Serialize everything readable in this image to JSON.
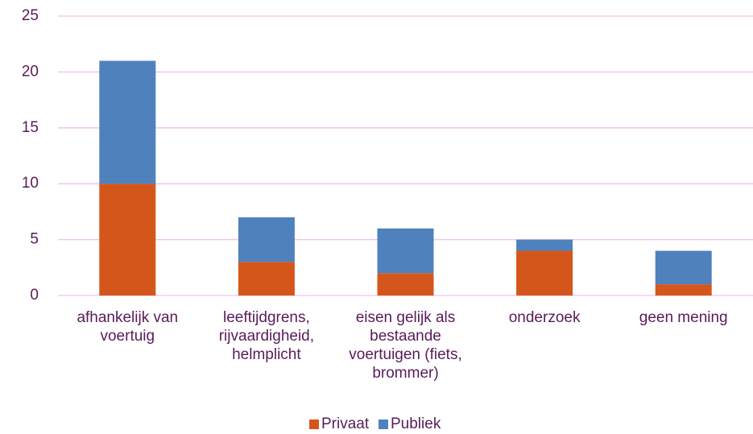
{
  "chart_data": {
    "type": "bar",
    "stacked": true,
    "categories": [
      "afhankelijk van voertuig",
      "leeftijdgrens, rijvaardigheid, helmplicht",
      "eisen gelijk als bestaande voertuigen (fiets, brommer)",
      "onderzoek",
      "geen mening"
    ],
    "series": [
      {
        "name": "Privaat",
        "color": "#d5561b",
        "values": [
          10,
          3,
          2,
          4,
          1
        ]
      },
      {
        "name": "Publiek",
        "color": "#4f81bd",
        "values": [
          11,
          4,
          4,
          1,
          3
        ]
      }
    ],
    "ylim": [
      0,
      25
    ],
    "yticks": [
      0,
      5,
      10,
      15,
      20,
      25
    ],
    "grid": true,
    "legend": "bottom"
  }
}
